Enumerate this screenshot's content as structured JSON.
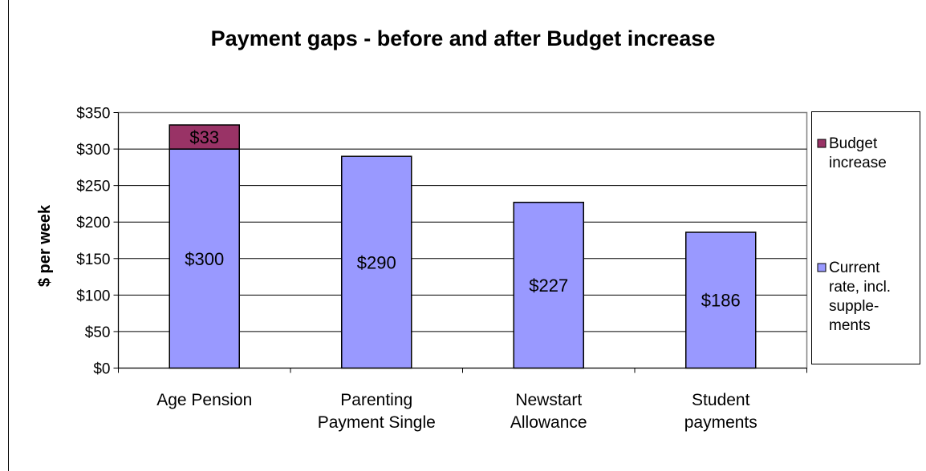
{
  "chart_data": {
    "type": "bar",
    "stacked": true,
    "title": "Payment gaps - before and after Budget increase",
    "ylabel": "$ per week",
    "xlabel": "",
    "ylim": [
      0,
      350
    ],
    "yticks": [
      0,
      50,
      100,
      150,
      200,
      250,
      300,
      350
    ],
    "ytick_prefix": "$",
    "grid": true,
    "categories": [
      [
        "Age Pension"
      ],
      [
        "Parenting",
        "Payment Single"
      ],
      [
        "Newstart",
        "Allowance"
      ],
      [
        "Student",
        "payments"
      ]
    ],
    "series": [
      {
        "name": "Current rate, incl. supplements",
        "legend_lines": [
          "Current",
          "rate,  incl.",
          "supple-",
          "ments"
        ],
        "color": "#9999FF",
        "values": [
          300,
          290,
          227,
          186
        ],
        "labels": [
          "$300",
          "$290",
          "$227",
          "$186"
        ]
      },
      {
        "name": "Budget increase",
        "legend_lines": [
          "Budget",
          "increase"
        ],
        "color": "#993366",
        "values": [
          33,
          null,
          null,
          null
        ],
        "labels": [
          "$33",
          null,
          null,
          null
        ]
      }
    ],
    "legend_position": "right"
  }
}
